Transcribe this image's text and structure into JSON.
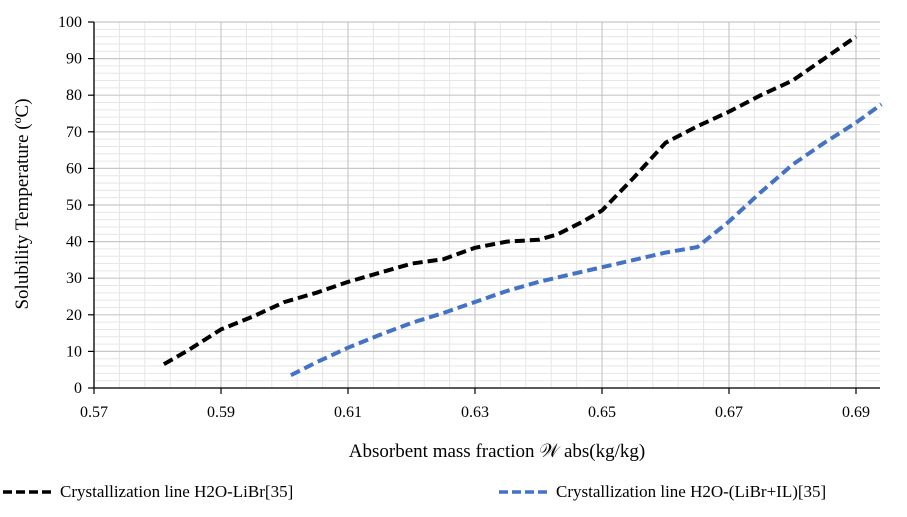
{
  "chart_data": {
    "type": "line",
    "xlabel": "Absorbent mass fraction 𝒲 abs(kg/kg)",
    "ylabel": "Solubility Temperature (ºC)",
    "xlim": [
      0.57,
      0.695
    ],
    "ylim": [
      0,
      100
    ],
    "x_ticks": [
      "0.57",
      "0.59",
      "0.61",
      "0.63",
      "0.65",
      "0.67",
      "0.69"
    ],
    "y_ticks": [
      "0",
      "10",
      "20",
      "30",
      "40",
      "50",
      "60",
      "70",
      "80",
      "90",
      "100"
    ],
    "grid": true,
    "legend_position": "bottom",
    "series": [
      {
        "name": "Crystallization line H2O-LiBr[35]",
        "color": "#000000",
        "dash": "dashed",
        "x": [
          0.581,
          0.585,
          0.59,
          0.595,
          0.6,
          0.605,
          0.61,
          0.615,
          0.62,
          0.625,
          0.63,
          0.635,
          0.64,
          0.643,
          0.647,
          0.65,
          0.655,
          0.66,
          0.665,
          0.67,
          0.675,
          0.68,
          0.685,
          0.69
        ],
        "y": [
          6.5,
          10.5,
          16,
          19.5,
          23.5,
          26,
          29,
          31.5,
          34,
          35.2,
          38.3,
          40,
          40.5,
          42,
          45.5,
          48.5,
          57.5,
          67,
          71.5,
          75.5,
          80,
          84,
          90,
          96
        ]
      },
      {
        "name": "Crystallization line H2O-(LiBr+IL)[35]",
        "color": "#4472C4",
        "dash": "dashed",
        "x": [
          0.601,
          0.605,
          0.61,
          0.615,
          0.62,
          0.625,
          0.63,
          0.635,
          0.64,
          0.645,
          0.65,
          0.655,
          0.66,
          0.665,
          0.67,
          0.675,
          0.68,
          0.685,
          0.69,
          0.694
        ],
        "y": [
          3.5,
          7,
          11,
          14.5,
          17.8,
          20.5,
          23.5,
          26.5,
          29,
          31,
          33,
          35,
          37,
          38.5,
          45.5,
          53.5,
          61,
          67,
          72.5,
          77.5
        ]
      }
    ]
  }
}
